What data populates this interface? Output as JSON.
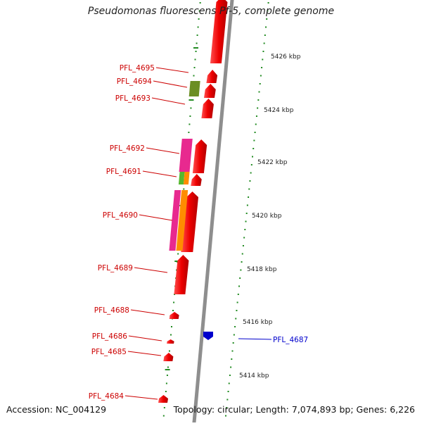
{
  "title": "Pseudomonas fluorescens Pf-5, complete genome",
  "accession_text": "Accession: NC_004129",
  "topology_text": "Topology: circular; Length: 7,074,893 bp; Genes: 6,226",
  "colors": {
    "backbone": "#8e8e8e",
    "gene_forward": "#ff0000",
    "gene_reverse": "#0000cc",
    "label_forward": "#cc0000",
    "label_reverse": "#0000cc",
    "tick": "#228b22",
    "magenta": "#e8298f",
    "orange": "#ff8c00",
    "olive": "#6b8e23",
    "green": "#55b82e"
  },
  "scale_labels": [
    "5426 kbp",
    "5424 kbp",
    "5422 kbp",
    "5420 kbp",
    "5418 kbp",
    "5416 kbp",
    "5414 kbp"
  ],
  "gene_labels": [
    {
      "text": "PFL_4695",
      "strand": "forward"
    },
    {
      "text": "PFL_4694",
      "strand": "forward"
    },
    {
      "text": "PFL_4693",
      "strand": "forward"
    },
    {
      "text": "PFL_4692",
      "strand": "forward"
    },
    {
      "text": "PFL_4691",
      "strand": "forward"
    },
    {
      "text": "PFL_4690",
      "strand": "forward"
    },
    {
      "text": "PFL_4689",
      "strand": "forward"
    },
    {
      "text": "PFL_4688",
      "strand": "forward"
    },
    {
      "text": "PFL_4686",
      "strand": "forward"
    },
    {
      "text": "PFL_4685",
      "strand": "forward"
    },
    {
      "text": "PFL_4684",
      "strand": "forward"
    },
    {
      "text": "PFL_4687",
      "strand": "reverse"
    }
  ]
}
